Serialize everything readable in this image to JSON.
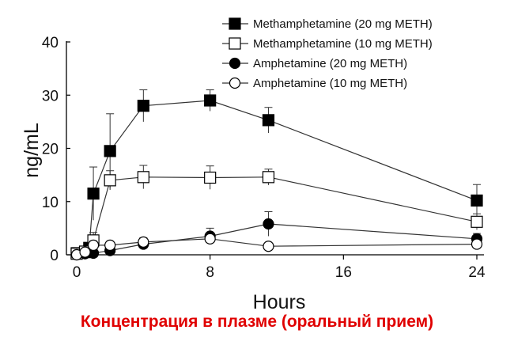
{
  "caption": "Концентрация в плазме (оральный прием)",
  "chart_data": {
    "type": "line",
    "xlabel": "Hours",
    "ylabel": "ng/mL",
    "xlim": [
      0,
      24
    ],
    "ylim": [
      0,
      40
    ],
    "xticks": [
      "0",
      "8",
      "16",
      "24"
    ],
    "yticks": [
      "0",
      "10",
      "20",
      "30",
      "40"
    ],
    "grid": false,
    "legend_position": "top-right",
    "series": [
      {
        "name": "Methamphetamine (20 mg METH)",
        "marker": "square-filled",
        "points": [
          {
            "x": 0,
            "y": 0.3,
            "err": 0
          },
          {
            "x": 0.5,
            "y": 0.5,
            "err": 0
          },
          {
            "x": 0.75,
            "y": 1.3,
            "err": 0
          },
          {
            "x": 1,
            "y": 11.5,
            "err": 5
          },
          {
            "x": 2,
            "y": 19.5,
            "err": 7
          },
          {
            "x": 4,
            "y": 28,
            "err": 3
          },
          {
            "x": 8,
            "y": 29,
            "err": 2
          },
          {
            "x": 11.5,
            "y": 25.3,
            "err": 2.4
          },
          {
            "x": 24,
            "y": 10.2,
            "err": 3
          }
        ]
      },
      {
        "name": "Methamphetamine (10 mg METH)",
        "marker": "square-open",
        "points": [
          {
            "x": 0,
            "y": 0.2,
            "err": 0
          },
          {
            "x": 0.5,
            "y": 0.6,
            "err": 0
          },
          {
            "x": 1,
            "y": 2.7,
            "err": 1.5
          },
          {
            "x": 2,
            "y": 14,
            "err": 1.8
          },
          {
            "x": 4,
            "y": 14.6,
            "err": 2.2
          },
          {
            "x": 8,
            "y": 14.5,
            "err": 2.2
          },
          {
            "x": 11.5,
            "y": 14.6,
            "err": 1.5
          },
          {
            "x": 24,
            "y": 6.2,
            "err": 1.5
          }
        ]
      },
      {
        "name": "Amphetamine (20 mg METH)",
        "marker": "circle-filled",
        "points": [
          {
            "x": 0,
            "y": 0,
            "err": 0
          },
          {
            "x": 0.5,
            "y": 0.2,
            "err": 0
          },
          {
            "x": 1,
            "y": 0.3,
            "err": 0.3
          },
          {
            "x": 2,
            "y": 0.8,
            "err": 0.5
          },
          {
            "x": 4,
            "y": 2,
            "err": 0.7
          },
          {
            "x": 8,
            "y": 3.5,
            "err": 1.5
          },
          {
            "x": 11.5,
            "y": 5.8,
            "err": 2.3
          },
          {
            "x": 24,
            "y": 3,
            "err": 1
          }
        ]
      },
      {
        "name": "Amphetamine (10 mg METH)",
        "marker": "circle-open",
        "points": [
          {
            "x": 0,
            "y": 0,
            "err": 0
          },
          {
            "x": 0.5,
            "y": 0.5,
            "err": 0
          },
          {
            "x": 1,
            "y": 1.8,
            "err": 0.8
          },
          {
            "x": 2,
            "y": 1.8,
            "err": 0.7
          },
          {
            "x": 4,
            "y": 2.4,
            "err": 0.8
          },
          {
            "x": 8,
            "y": 3,
            "err": 0.9
          },
          {
            "x": 11.5,
            "y": 1.6,
            "err": 0.6
          },
          {
            "x": 24,
            "y": 2,
            "err": 0.7
          }
        ]
      }
    ]
  }
}
